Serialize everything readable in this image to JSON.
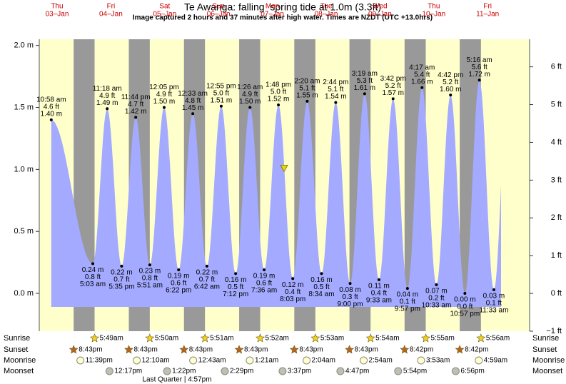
{
  "chart_data": {
    "type": "tide",
    "title": "Te Awanga: falling  spring tide at 1.0m (3.3ft)",
    "subtitle": "Image captured 2 hours and 37 minutes after high water. Times are NZDT (UTC +13.0hrs)",
    "days": [
      {
        "name": "Thu",
        "date": "03–Jan"
      },
      {
        "name": "Fri",
        "date": "04–Jan"
      },
      {
        "name": "Sat",
        "date": "05–Jan"
      },
      {
        "name": "Sun",
        "date": "06–Jan"
      },
      {
        "name": "Mon",
        "date": "07–Jan"
      },
      {
        "name": "Tue",
        "date": "08–Jan"
      },
      {
        "name": "Wed",
        "date": "09–Jan"
      },
      {
        "name": "Thu",
        "date": "10–Jan"
      },
      {
        "name": "Fri",
        "date": "11–Jan"
      }
    ],
    "ylim": [
      -0.305,
      2.05
    ],
    "yticks": [
      {
        "value": 0,
        "label": "0.0 m"
      },
      {
        "value": 0.5,
        "label": "0.5 m"
      },
      {
        "value": 1,
        "label": "1.0 m"
      },
      {
        "value": 1.5,
        "label": "1.5 m"
      },
      {
        "value": 2,
        "label": "2.0 m"
      }
    ],
    "y2lim": [
      -1,
      6.73
    ],
    "y2ticks": [
      {
        "value": -1,
        "label": "−1 ft"
      },
      {
        "value": 0,
        "label": "0 ft"
      },
      {
        "value": 1,
        "label": "1 ft"
      },
      {
        "value": 2,
        "label": "2 ft"
      },
      {
        "value": 3,
        "label": "3 ft"
      },
      {
        "value": 4,
        "label": "4 ft"
      },
      {
        "value": 5,
        "label": "5 ft"
      },
      {
        "value": 6,
        "label": "6 ft"
      }
    ],
    "tides": {
      "times": [
        "10:58 am",
        "5:03 am",
        "11:18 am",
        "5:35 pm",
        "11:44 pm",
        "5:51 am",
        "12:05 pm",
        "6:22 pm",
        "12:33 am",
        "6:42 am",
        "12:55 pm",
        "7:12 pm",
        "1:26 am",
        "7:36 am",
        "1:48 pm",
        "8:03 pm",
        "2:20 am",
        "8:34 am",
        "2:44 pm",
        "9:00 pm",
        "3:19 am",
        "9:33 am",
        "3:42 pm",
        "9:57 pm",
        "4:17 am",
        "10:33 am",
        "4:42 pm",
        "10:57 pm",
        "5:16 am",
        "11:33 am"
      ],
      "values": [
        1.4,
        0.24,
        1.49,
        0.22,
        1.42,
        0.23,
        1.5,
        0.19,
        1.45,
        0.22,
        1.51,
        0.16,
        1.5,
        0.19,
        1.52,
        0.12,
        1.55,
        0.16,
        1.54,
        0.08,
        1.61,
        0.11,
        1.57,
        0.04,
        1.66,
        0.07,
        1.6,
        0.0,
        1.72,
        0.03
      ],
      "value_labels": [
        "1.40 m",
        "0.24 m",
        "1.49 m",
        "0.22 m",
        "1.42 m",
        "0.23 m",
        "1.50 m",
        "0.19 m",
        "1.45 m",
        "0.22 m",
        "1.51 m",
        "0.16 m",
        "1.50 m",
        "0.19 m",
        "1.52 m",
        "0.12 m",
        "1.55 m",
        "0.16 m",
        "1.54 m",
        "0.08 m",
        "1.61 m",
        "0.11 m",
        "1.57 m",
        "0.04 m",
        "1.66 m",
        "0.07 m",
        "1.60 m",
        "0.00 m",
        "1.72 m",
        "0.03 m"
      ],
      "ft_labels": [
        "4.6 ft",
        "0.8 ft",
        "4.9 ft",
        "0.7 ft",
        "4.7 ft",
        "0.8 ft",
        "4.9 ft",
        "0.6 ft",
        "4.8 ft",
        "0.7 ft",
        "5.0 ft",
        "0.5 ft",
        "4.9 ft",
        "0.6 ft",
        "5.0 ft",
        "0.4 ft",
        "5.1 ft",
        "0.5 ft",
        "5.1 ft",
        "0.3 ft",
        "5.3 ft",
        "0.4 ft",
        "5.2 ft",
        "0.1 ft",
        "5.4 ft",
        "0.2 ft",
        "5.2 ft",
        "0.0 ft",
        "5.6 ft",
        "0.1 ft"
      ]
    },
    "current_level": 1.0,
    "sun_moon": [
      {
        "label": "Sunrise",
        "times": [
          "5:49am",
          "5:50am",
          "5:51am",
          "5:52am",
          "5:53am",
          "5:54am",
          "5:55am",
          "5:56am"
        ]
      },
      {
        "label": "Sunset",
        "times": [
          "8:43pm",
          "8:43pm",
          "8:43pm",
          "8:43pm",
          "8:43pm",
          "8:43pm",
          "8:42pm",
          "8:42pm"
        ]
      },
      {
        "label": "Moonrise",
        "times": [
          "11:39pm",
          "12:10am",
          "12:43am",
          "1:21am",
          "2:04am",
          "2:54am",
          "3:53am",
          "4:59am"
        ]
      },
      {
        "label": "Moonset",
        "times": [
          "12:17pm",
          "1:22pm",
          "2:29pm",
          "3:37pm",
          "4:47pm",
          "5:54pm",
          "6:56pm"
        ]
      }
    ],
    "moon_phase": "Last Quarter | 4:57pm"
  }
}
